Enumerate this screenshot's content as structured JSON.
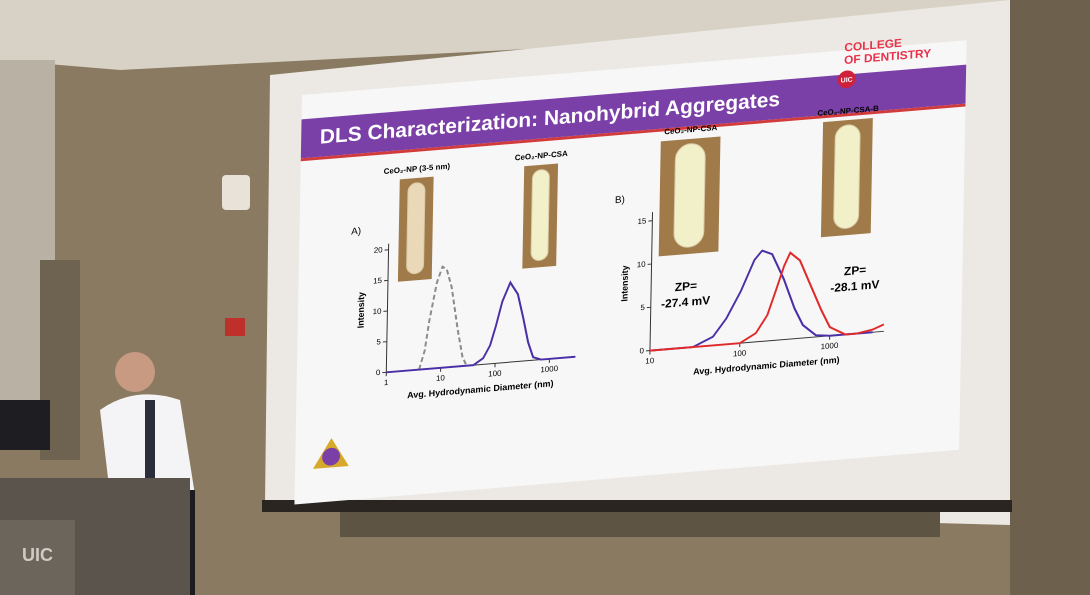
{
  "slide": {
    "title": "DLS Characterization: Nanohybrid Aggregates",
    "logo_line_1": "COLLEGE",
    "logo_line_2": "OF DENTISTRY",
    "logo_badge": "UIC"
  },
  "podium_label": "UIC",
  "chart_data": [
    {
      "type": "line",
      "panel": "A)",
      "x_label": "Avg. Hydrodynamic Diameter (nm)",
      "y_label": "Intensity",
      "log_x": true,
      "xlim": [
        1,
        3000
      ],
      "xticks": [
        1,
        10,
        100,
        1000
      ],
      "ylim": [
        0,
        21
      ],
      "yticks": [
        0,
        5,
        10,
        15,
        20
      ],
      "series": [
        {
          "name": "CeO₂-NP (3-5 nm)",
          "color": "#8a8a8a",
          "dashed": true,
          "x": [
            4,
            5,
            6,
            8,
            10,
            12,
            15,
            20,
            25,
            30
          ],
          "values": [
            0,
            3,
            8,
            14,
            16.5,
            16,
            13,
            6,
            1.5,
            0
          ]
        },
        {
          "name": "CeO₂-NP-CSA",
          "color": "#4b2fa6",
          "dashed": false,
          "x": [
            1,
            40,
            60,
            80,
            100,
            130,
            180,
            250,
            320,
            400,
            500,
            700,
            3000
          ],
          "values": [
            0,
            0,
            1,
            3,
            6,
            10,
            13,
            11,
            7,
            3,
            0.5,
            0,
            0
          ]
        }
      ]
    },
    {
      "type": "line",
      "panel": "B)",
      "x_label": "Avg. Hydrodynamic Diameter (nm)",
      "y_label": "Intensity",
      "log_x": true,
      "xlim": [
        10,
        4000
      ],
      "xticks": [
        10,
        100,
        1000
      ],
      "ylim": [
        0,
        16
      ],
      "yticks": [
        0,
        5,
        10,
        15
      ],
      "series": [
        {
          "name": "CeO₂-NP-CSA",
          "color": "#4b2fa6",
          "dashed": false,
          "annotation": [
            "ZP=",
            "-27.4 mV"
          ],
          "x": [
            10,
            30,
            50,
            70,
            100,
            140,
            170,
            220,
            300,
            400,
            500,
            700,
            1000,
            3000
          ],
          "values": [
            0,
            0,
            1,
            3,
            6,
            9.5,
            10.5,
            10,
            7,
            3.5,
            1.5,
            0.2,
            0,
            0
          ]
        },
        {
          "name": "CeO₂-NP-CSA-B",
          "color": "#e02a2a",
          "dashed": false,
          "annotation": [
            "ZP=",
            "-28.1 mV"
          ],
          "x": [
            10,
            100,
            150,
            200,
            250,
            300,
            350,
            450,
            600,
            800,
            1000,
            1500,
            2000,
            3000,
            4000
          ],
          "values": [
            0,
            0,
            1,
            3,
            6,
            8.5,
            10,
            9,
            6,
            3,
            1,
            0,
            0,
            0.3,
            0.8
          ]
        }
      ]
    }
  ]
}
